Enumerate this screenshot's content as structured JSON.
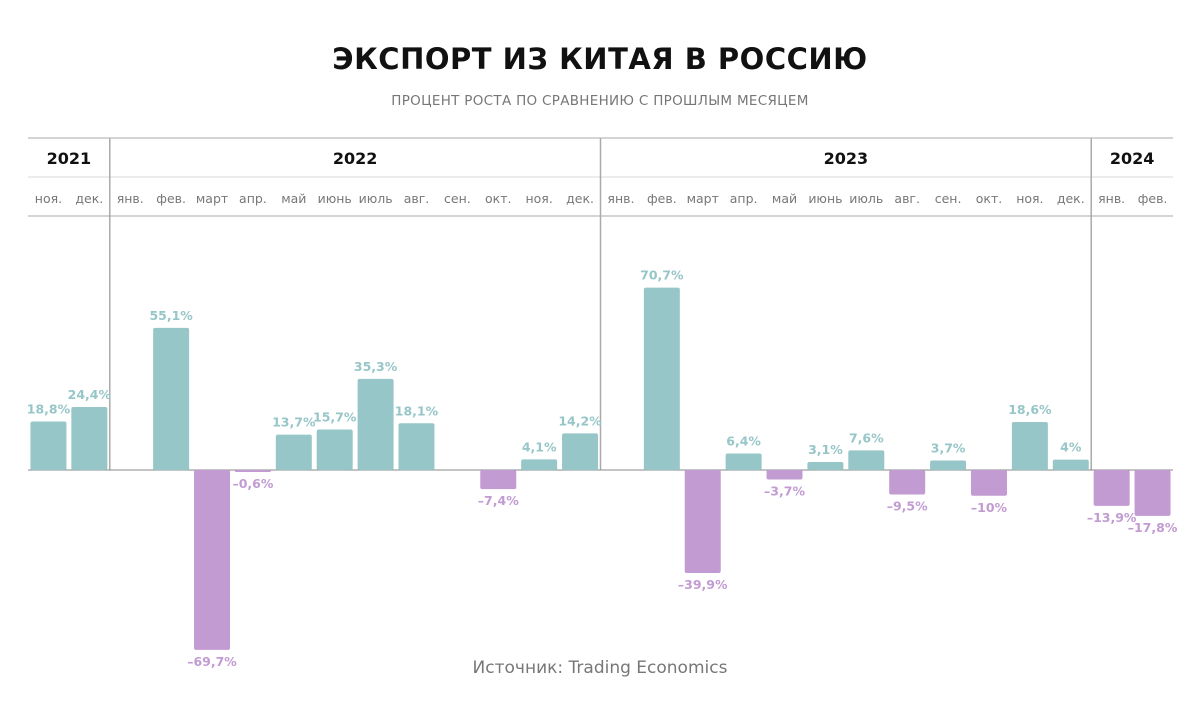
{
  "title": "ЭКСПОРТ ИЗ КИТАЯ В РОССИЮ",
  "subtitle": "ПРОЦЕНТ РОСТА ПО СРАВНЕНИЮ С ПРОШЛЫМ МЕСЯЦЕМ",
  "source": "Источник:  Trading Economics",
  "colors": {
    "positive": "#97c6c8",
    "negative": "#c29bd2",
    "grid": "#aaaaaa",
    "month_label": "#777777",
    "year_label": "#111111"
  },
  "chart_data": {
    "type": "bar",
    "years": [
      {
        "label": "2021",
        "months": 2
      },
      {
        "label": "2022",
        "months": 12
      },
      {
        "label": "2023",
        "months": 12
      },
      {
        "label": "2024",
        "months": 2
      }
    ],
    "categories": [
      "ноя.",
      "дек.",
      "янв.",
      "фев.",
      "март",
      "апр.",
      "май",
      "июнь",
      "июль",
      "авг.",
      "сен.",
      "окт.",
      "ноя.",
      "дек.",
      "янв.",
      "фев.",
      "март",
      "апр.",
      "май",
      "июнь",
      "июль",
      "авг.",
      "сен.",
      "окт.",
      "ноя.",
      "дек.",
      "янв.",
      "фев."
    ],
    "values": [
      18.8,
      24.4,
      null,
      55.1,
      -69.7,
      -0.6,
      13.7,
      15.7,
      35.3,
      18.1,
      null,
      -7.4,
      4.1,
      14.2,
      null,
      70.7,
      -39.9,
      6.4,
      -3.7,
      3.1,
      7.6,
      -9.5,
      3.7,
      -10,
      18.6,
      4,
      -13.9,
      -17.8
    ],
    "value_labels": [
      "18,8%",
      "24,4%",
      "",
      "55,1%",
      "–69,7%",
      "–0,6%",
      "13,7%",
      "15,7%",
      "35,3%",
      "18,1%",
      "",
      "–7,4%",
      "4,1%",
      "14,2%",
      "",
      "70,7%",
      "–39,9%",
      "6,4%",
      "–3,7%",
      "3,1%",
      "7,6%",
      "–9,5%",
      "3,7%",
      "–10%",
      "18,6%",
      "4%",
      "–13,9%",
      "–17,8%"
    ]
  }
}
